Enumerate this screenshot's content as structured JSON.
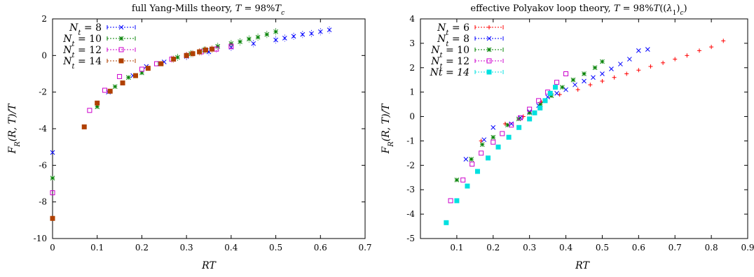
{
  "chart_data": [
    {
      "type": "scatter",
      "title": "full Yang-Mills theory, T = 98%T_c",
      "xlabel": "RT",
      "ylabel": "F_R(R,T)/T",
      "xlim": [
        0,
        0.7
      ],
      "ylim": [
        -10,
        2
      ],
      "xticks": [
        0,
        0.1,
        0.2,
        0.3,
        0.4,
        0.5,
        0.6,
        0.7
      ],
      "yticks": [
        -10,
        -8,
        -6,
        -4,
        -2,
        0,
        2
      ],
      "grid": false,
      "legend_position": "top-left",
      "series": [
        {
          "name": "N_t = 8",
          "color": "#0000ff",
          "marker": "x",
          "x": [
            0,
            0.125,
            0.18,
            0.21,
            0.25,
            0.3,
            0.35,
            0.4,
            0.45,
            0.5,
            0.52,
            0.54,
            0.56,
            0.58,
            0.6,
            0.62
          ],
          "y": [
            -5.3,
            -2.0,
            -1.1,
            -0.6,
            -0.35,
            -0.05,
            0.2,
            0.45,
            0.65,
            0.85,
            0.95,
            1.05,
            1.15,
            1.2,
            1.3,
            1.4
          ]
        },
        {
          "name": "N_t = 10",
          "color": "#008000",
          "marker": "*",
          "x": [
            0,
            0.1,
            0.14,
            0.17,
            0.2,
            0.24,
            0.28,
            0.31,
            0.34,
            0.37,
            0.4,
            0.42,
            0.44,
            0.46,
            0.48,
            0.5
          ],
          "y": [
            -6.7,
            -2.8,
            -1.7,
            -1.2,
            -0.95,
            -0.45,
            -0.1,
            0.1,
            0.3,
            0.5,
            0.65,
            0.75,
            0.9,
            1.0,
            1.15,
            1.3
          ]
        },
        {
          "name": "N_t = 12",
          "color": "#cc00cc",
          "marker": "square-open",
          "x": [
            0,
            0.083,
            0.117,
            0.15,
            0.2,
            0.233,
            0.267,
            0.3,
            0.333,
            0.367,
            0.4
          ],
          "y": [
            -7.5,
            -3.0,
            -1.9,
            -1.15,
            -0.75,
            -0.45,
            -0.2,
            0.0,
            0.2,
            0.35,
            0.5
          ]
        },
        {
          "name": "N_t = 14",
          "color": "#b04000",
          "marker": "square-filled",
          "x": [
            0,
            0.071,
            0.1,
            0.129,
            0.157,
            0.186,
            0.214,
            0.243,
            0.271,
            0.3,
            0.314,
            0.329,
            0.343,
            0.357
          ],
          "y": [
            -8.9,
            -3.9,
            -2.6,
            -1.95,
            -1.5,
            -1.1,
            -0.7,
            -0.45,
            -0.2,
            0.0,
            0.1,
            0.2,
            0.3,
            0.35
          ]
        }
      ]
    },
    {
      "type": "scatter",
      "title": "effective Polyakov loop theory, T = 98%T((λ_1)_c)",
      "xlabel": "RT",
      "ylabel": "F_R(R,T)/T",
      "xlim": [
        0,
        0.9
      ],
      "ylim": [
        -5,
        4
      ],
      "xticks": [
        0.1,
        0.2,
        0.3,
        0.4,
        0.5,
        0.6,
        0.7,
        0.8,
        0.9
      ],
      "yticks": [
        -5,
        -4,
        -3,
        -2,
        -1,
        0,
        1,
        2,
        3,
        4
      ],
      "grid": false,
      "legend_position": "top-left",
      "series": [
        {
          "name": "N_t = 6",
          "color": "#ff0000",
          "marker": "+",
          "x": [
            0.167,
            0.233,
            0.283,
            0.333,
            0.383,
            0.433,
            0.467,
            0.5,
            0.533,
            0.567,
            0.6,
            0.633,
            0.667,
            0.7,
            0.733,
            0.767,
            0.8,
            0.833
          ],
          "y": [
            -1.0,
            -0.3,
            0.0,
            0.6,
            0.9,
            1.1,
            1.3,
            1.45,
            1.6,
            1.75,
            1.9,
            2.05,
            2.2,
            2.35,
            2.5,
            2.7,
            2.85,
            3.1
          ]
        },
        {
          "name": "N_t = 8",
          "color": "#0000ff",
          "marker": "x",
          "x": [
            0.125,
            0.175,
            0.2,
            0.25,
            0.275,
            0.3,
            0.325,
            0.35,
            0.375,
            0.4,
            0.425,
            0.45,
            0.475,
            0.5,
            0.525,
            0.55,
            0.575,
            0.6,
            0.625
          ],
          "y": [
            -1.75,
            -0.95,
            -0.45,
            -0.3,
            -0.05,
            0.2,
            0.45,
            0.8,
            0.95,
            1.1,
            1.3,
            1.45,
            1.6,
            1.75,
            1.95,
            2.15,
            2.35,
            2.7,
            2.75
          ]
        },
        {
          "name": "N_t = 10",
          "color": "#008000",
          "marker": "*",
          "x": [
            0.1,
            0.14,
            0.17,
            0.2,
            0.24,
            0.27,
            0.3,
            0.33,
            0.36,
            0.39,
            0.42,
            0.45,
            0.48,
            0.5
          ],
          "y": [
            -2.6,
            -1.75,
            -1.15,
            -0.85,
            -0.35,
            -0.1,
            0.15,
            0.5,
            0.85,
            1.2,
            1.5,
            1.75,
            2.0,
            2.25
          ]
        },
        {
          "name": "N_t = 12",
          "color": "#cc00cc",
          "marker": "square-open",
          "x": [
            0.083,
            0.117,
            0.142,
            0.167,
            0.2,
            0.225,
            0.25,
            0.275,
            0.3,
            0.325,
            0.35,
            0.375,
            0.4
          ],
          "y": [
            -3.45,
            -2.6,
            -1.95,
            -1.5,
            -1.05,
            -0.7,
            -0.35,
            -0.05,
            0.3,
            0.65,
            1.0,
            1.4,
            1.75
          ]
        },
        {
          "name": "Nt = 14",
          "color": "#00e0e0",
          "marker": "square-filled",
          "x": [
            0.071,
            0.1,
            0.129,
            0.157,
            0.186,
            0.214,
            0.243,
            0.271,
            0.3,
            0.314,
            0.329,
            0.343,
            0.357,
            0.371
          ],
          "y": [
            -4.35,
            -3.45,
            -2.85,
            -2.25,
            -1.7,
            -1.25,
            -0.85,
            -0.45,
            -0.1,
            0.15,
            0.35,
            0.65,
            0.95,
            1.2
          ]
        }
      ]
    }
  ]
}
